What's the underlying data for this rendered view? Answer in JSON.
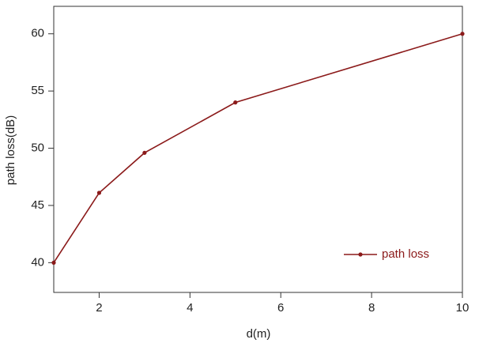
{
  "chart_data": {
    "type": "line",
    "x_label": "d(m)",
    "y_label": "path loss(dB)",
    "x": [
      1,
      2,
      3,
      5,
      10
    ],
    "series": [
      {
        "name": "path loss",
        "color": "#8b1a1a",
        "values": [
          40,
          46.1,
          49.6,
          54.0,
          60.0
        ]
      }
    ],
    "xlim": [
      1,
      10
    ],
    "xticks": [
      2,
      4,
      6,
      8,
      10
    ],
    "ylim": [
      37.4,
      62.4
    ],
    "yticks": [
      40,
      45,
      50,
      55,
      60
    ],
    "legend": "lower right",
    "grid": false
  }
}
